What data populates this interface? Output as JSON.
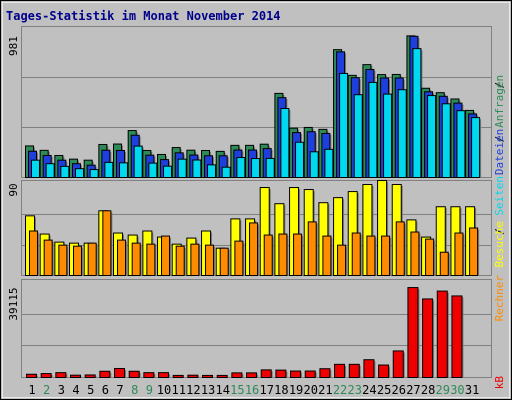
{
  "title": "Tages-Statistik im Monat November 2014",
  "colors": {
    "background": "#c0c0c0",
    "panel_bg": "#c0c0c0",
    "border": "#808080",
    "grid": "#808080",
    "title": "#00008b",
    "weekday_label": "#000000",
    "weekend_label": "#2e8b57",
    "anfragen": "#2e8b57",
    "dateien": "#1e3fdc",
    "seiten": "#00d8f0",
    "besuche": "#ffff00",
    "rechner": "#ff8c00",
    "kb": "#ee0000"
  },
  "chart_data": [
    {
      "type": "bar",
      "panel": "hits",
      "ymax_label": "981",
      "ylim": [
        0,
        981
      ],
      "grid": true,
      "categories": [
        "1",
        "2",
        "3",
        "4",
        "5",
        "6",
        "7",
        "8",
        "9",
        "10",
        "11",
        "12",
        "13",
        "14",
        "15",
        "16",
        "17",
        "18",
        "19",
        "20",
        "21",
        "22",
        "23",
        "24",
        "25",
        "26",
        "27",
        "28",
        "29",
        "30",
        "31"
      ],
      "weekend": [
        "2",
        "8",
        "9",
        "15",
        "16",
        "22",
        "23",
        "29",
        "30"
      ],
      "series": [
        {
          "name": "Anfragen",
          "color": "#2e8b57",
          "values": [
            215,
            185,
            150,
            125,
            118,
            225,
            228,
            320,
            184,
            157,
            204,
            186,
            184,
            178,
            219,
            219,
            227,
            573,
            336,
            341,
            328,
            871,
            696,
            769,
            701,
            702,
            965,
            608,
            578,
            535,
            457
          ]
        },
        {
          "name": "Dateien",
          "color": "#1e3fdc",
          "values": [
            179,
            150,
            118,
            94,
            84,
            186,
            184,
            288,
            152,
            122,
            168,
            153,
            148,
            148,
            187,
            187,
            197,
            544,
            306,
            312,
            300,
            856,
            680,
            736,
            678,
            678,
            962,
            584,
            553,
            507,
            433
          ]
        },
        {
          "name": "Seiten",
          "color": "#00d8f0",
          "values": [
            118,
            94,
            76,
            60,
            54,
            103,
            100,
            214,
            98,
            77,
            125,
            119,
            86,
            70,
            136,
            129,
            130,
            470,
            240,
            175,
            192,
            709,
            564,
            648,
            568,
            598,
            878,
            558,
            502,
            455,
            408
          ]
        }
      ]
    },
    {
      "type": "bar",
      "panel": "visits",
      "ymax_label": "90",
      "ylim": [
        0,
        90
      ],
      "grid": true,
      "categories": [
        "1",
        "2",
        "3",
        "4",
        "5",
        "6",
        "7",
        "8",
        "9",
        "10",
        "11",
        "12",
        "13",
        "14",
        "15",
        "16",
        "17",
        "18",
        "19",
        "20",
        "21",
        "22",
        "23",
        "24",
        "25",
        "26",
        "27",
        "28",
        "29",
        "30",
        "31"
      ],
      "series": [
        {
          "name": "Besuche",
          "color": "#ffff00",
          "values": [
            59,
            41,
            33,
            32,
            32,
            64,
            42,
            40,
            44,
            38,
            31,
            37,
            44,
            27,
            56,
            56,
            87,
            71,
            87,
            85,
            72,
            77,
            83,
            90,
            94,
            90,
            55,
            38,
            68,
            68,
            68
          ]
        },
        {
          "name": "Rechner",
          "color": "#ff8c00",
          "values": [
            44,
            35,
            30,
            29,
            32,
            64,
            35,
            32,
            31,
            39,
            29,
            31,
            30,
            27,
            34,
            52,
            40,
            41,
            41,
            53,
            39,
            30,
            42,
            39,
            39,
            53,
            43,
            36,
            23,
            42,
            47
          ]
        }
      ]
    },
    {
      "type": "bar",
      "panel": "volume",
      "ymax_label": "39115",
      "ylim": [
        0,
        39115
      ],
      "grid": true,
      "categories": [
        "1",
        "2",
        "3",
        "4",
        "5",
        "6",
        "7",
        "8",
        "9",
        "10",
        "11",
        "12",
        "13",
        "14",
        "15",
        "16",
        "17",
        "18",
        "19",
        "20",
        "21",
        "22",
        "23",
        "24",
        "25",
        "26",
        "27",
        "28",
        "29",
        "30",
        "31"
      ],
      "series": [
        {
          "name": "kB",
          "color": "#ee0000",
          "values": [
            1400,
            1700,
            2100,
            1000,
            1100,
            2700,
            3900,
            2700,
            2100,
            2100,
            900,
            1000,
            900,
            900,
            2000,
            2000,
            3300,
            3200,
            2800,
            2800,
            3800,
            5700,
            5700,
            7700,
            5400,
            11500,
            41000,
            34000,
            37400,
            35300,
            0
          ]
        }
      ]
    }
  ],
  "legend_sides": {
    "hits": [
      "Anfragen",
      "Dateien",
      "Seiten"
    ],
    "visits": [
      "Besuche",
      "Rechner"
    ],
    "volume": [
      "kB"
    ]
  }
}
